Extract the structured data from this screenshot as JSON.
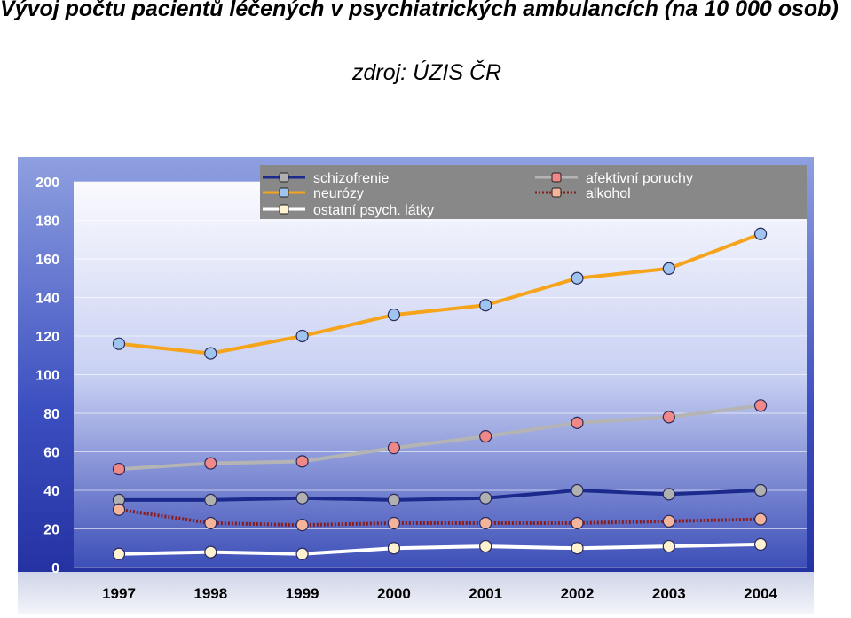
{
  "title": "Vývoj počtu pacientů léčených v psychiatrických ambulancích (na 10 000 osob)",
  "source": "zdroj: ÚZIS ČR",
  "chart_data": {
    "type": "line",
    "title": "",
    "xlabel": "",
    "ylabel": "",
    "x": [
      "1997",
      "1998",
      "1999",
      "2000",
      "2001",
      "2002",
      "2003",
      "2004"
    ],
    "ylim": [
      0,
      200
    ],
    "yticks": [
      0,
      20,
      40,
      60,
      80,
      100,
      120,
      140,
      160,
      180,
      200
    ],
    "grid": true,
    "legend_position": "top",
    "series": [
      {
        "name": "schizofrenie",
        "line_color": "#1c2a8e",
        "marker_color": "#b0b0b0",
        "style": "solid",
        "values": [
          35,
          35,
          36,
          35,
          36,
          40,
          38,
          40
        ]
      },
      {
        "name": "afektivní poruchy",
        "line_color": "#b4b4b4",
        "marker_color": "#f08888",
        "style": "solid",
        "values": [
          51,
          54,
          55,
          62,
          68,
          75,
          78,
          84
        ]
      },
      {
        "name": "neurózy",
        "line_color": "#f5a41b",
        "marker_color": "#9ec4ef",
        "style": "solid",
        "values": [
          116,
          111,
          120,
          131,
          136,
          150,
          155,
          173
        ]
      },
      {
        "name": "alkohol",
        "line_color": "#8b1a1a",
        "marker_color": "#f3b49a",
        "style": "dotted",
        "values": [
          30,
          23,
          22,
          23,
          23,
          23,
          24,
          25
        ]
      },
      {
        "name": "ostatní psych. látky",
        "line_color": "#ffffff",
        "marker_color": "#fff2d0",
        "style": "solid",
        "values": [
          7,
          8,
          7,
          10,
          11,
          10,
          11,
          12
        ]
      }
    ]
  }
}
